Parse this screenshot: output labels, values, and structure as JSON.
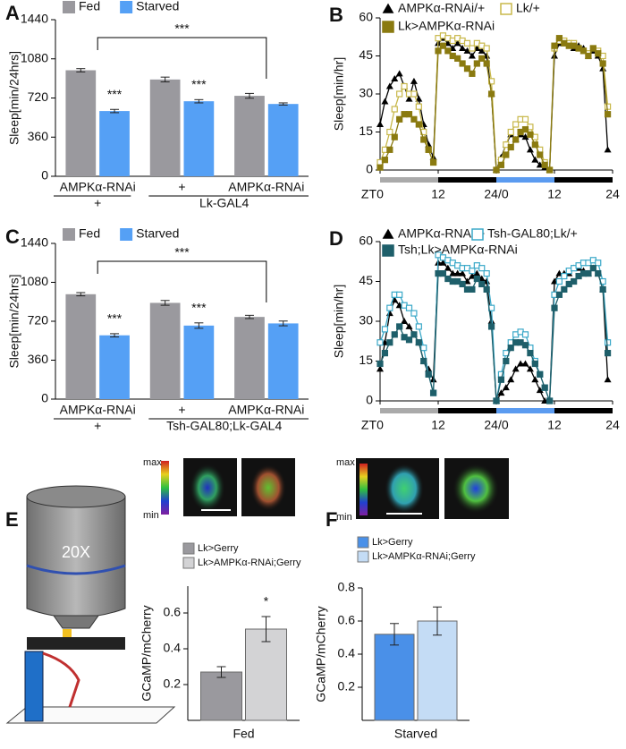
{
  "panel_labels": [
    "A",
    "B",
    "C",
    "D",
    "E",
    "F"
  ],
  "microscope_label": "20X",
  "insets": [
    {
      "max": "max",
      "min": "min"
    },
    {
      "max": "max",
      "min": "min"
    }
  ],
  "chart_data": [
    {
      "type": "bar",
      "ylabel": "Sleep[min/24hrs]",
      "categories": [
        "AMPKα-RNAi",
        "+",
        "AMPKα-RNAi"
      ],
      "genotype": [
        "+",
        "Lk-GAL4"
      ],
      "ylim": [
        0,
        1440
      ],
      "yticks": [
        0,
        360,
        720,
        1080,
        1440
      ],
      "annotations": [
        "***",
        "***",
        "***"
      ],
      "series": [
        {
          "name": "Fed",
          "color": "#9a999e",
          "values": [
            975,
            890,
            740
          ],
          "errors": [
            15,
            22,
            22
          ]
        },
        {
          "name": "Starved",
          "color": "#55a0f5",
          "values": [
            600,
            690,
            665
          ],
          "errors": [
            15,
            15,
            10
          ]
        }
      ]
    },
    {
      "type": "line",
      "ylabel": "Sleep[min/hr]",
      "xlabel": "ZT",
      "xlim": [
        0,
        48
      ],
      "ylim": [
        0,
        60
      ],
      "yticks": [
        0,
        15,
        30,
        45,
        60
      ],
      "xticks": [
        0,
        12,
        {
          "value": 24,
          "label": "24/0"
        },
        {
          "value": 36,
          "label": "12"
        },
        {
          "value": 48,
          "label": "24"
        }
      ],
      "x": [
        0,
        1,
        2,
        3,
        4,
        5,
        6,
        7,
        8,
        9,
        10,
        11,
        12,
        13,
        14,
        15,
        16,
        17,
        18,
        19,
        20,
        21,
        22,
        23,
        24,
        25,
        26,
        27,
        28,
        29,
        30,
        31,
        32,
        33,
        34,
        35,
        36,
        37,
        38,
        39,
        40,
        41,
        42,
        43,
        44,
        45,
        46,
        47
      ],
      "series": [
        {
          "name": "AMPKα-RNAi/+",
          "color": "#000000",
          "marker": "triangle",
          "values": [
            18,
            27,
            33,
            36,
            38,
            33,
            28,
            35,
            28,
            18,
            10,
            5,
            50,
            52,
            50,
            48,
            50,
            48,
            47,
            45,
            48,
            47,
            45,
            30,
            0,
            5,
            10,
            14,
            12,
            14,
            13,
            8,
            4,
            2,
            1,
            0,
            45,
            50,
            50,
            50,
            48,
            49,
            48,
            45,
            47,
            45,
            40,
            8
          ]
        },
        {
          "name": "Lk/+",
          "color": "#c8b84a",
          "marker": "square-open",
          "values": [
            3,
            8,
            15,
            24,
            30,
            33,
            30,
            30,
            25,
            15,
            8,
            3,
            52,
            53,
            52,
            51,
            52,
            51,
            50,
            48,
            50,
            49,
            48,
            35,
            0,
            4,
            10,
            15,
            18,
            20,
            20,
            17,
            13,
            8,
            3,
            0,
            48,
            51,
            51,
            50,
            50,
            48,
            47,
            46,
            48,
            47,
            45,
            25
          ]
        },
        {
          "name": "Lk>AMPKα-RNAi",
          "color": "#8a7a10",
          "marker": "square",
          "values": [
            1,
            4,
            8,
            13,
            20,
            22,
            22,
            20,
            18,
            12,
            8,
            3,
            47,
            49,
            47,
            45,
            44,
            42,
            40,
            38,
            42,
            44,
            42,
            30,
            0,
            2,
            6,
            9,
            12,
            15,
            16,
            14,
            10,
            6,
            2,
            0,
            49,
            52,
            50,
            49,
            49,
            48,
            47,
            45,
            48,
            46,
            42,
            22
          ]
        }
      ]
    },
    {
      "type": "bar",
      "ylabel": "Sleep[min/24hrs]",
      "categories": [
        "AMPKα-RNAi",
        "+",
        "AMPKα-RNAi"
      ],
      "genotype": [
        "+",
        "Tsh-GAL80;Lk-GAL4"
      ],
      "ylim": [
        0,
        1440
      ],
      "yticks": [
        0,
        360,
        720,
        1080,
        1440
      ],
      "annotations": [
        "***",
        "***",
        "***"
      ],
      "series": [
        {
          "name": "Fed",
          "color": "#9a999e",
          "values": [
            970,
            890,
            760
          ],
          "errors": [
            15,
            22,
            15
          ]
        },
        {
          "name": "Starved",
          "color": "#55a0f5",
          "values": [
            590,
            680,
            700
          ],
          "errors": [
            15,
            25,
            22
          ]
        }
      ]
    },
    {
      "type": "line",
      "ylabel": "Sleep[min/hr]",
      "xlabel": "ZT",
      "xlim": [
        0,
        48
      ],
      "ylim": [
        0,
        60
      ],
      "yticks": [
        0,
        15,
        30,
        45,
        60
      ],
      "xticks": [
        0,
        12,
        {
          "value": 24,
          "label": "24/0"
        },
        {
          "value": 36,
          "label": "12"
        },
        {
          "value": 48,
          "label": "24"
        }
      ],
      "x": [
        0,
        1,
        2,
        3,
        4,
        5,
        6,
        7,
        8,
        9,
        10,
        11,
        12,
        13,
        14,
        15,
        16,
        17,
        18,
        19,
        20,
        21,
        22,
        23,
        24,
        25,
        26,
        27,
        28,
        29,
        30,
        31,
        32,
        33,
        34,
        35,
        36,
        37,
        38,
        39,
        40,
        41,
        42,
        43,
        44,
        45,
        46,
        47
      ],
      "series": [
        {
          "name": "AMPKα-RNAi/+",
          "color": "#000000",
          "marker": "triangle",
          "values": [
            12,
            22,
            33,
            38,
            36,
            30,
            28,
            25,
            22,
            15,
            12,
            8,
            52,
            52,
            50,
            48,
            48,
            48,
            45,
            47,
            48,
            46,
            45,
            30,
            0,
            3,
            5,
            8,
            12,
            14,
            14,
            12,
            8,
            4,
            0,
            0,
            45,
            48,
            48,
            48,
            50,
            50,
            49,
            48,
            50,
            48,
            42,
            8
          ]
        },
        {
          "name": "Tsh-GAL80;Lk/+",
          "color": "#3aa8c8",
          "marker": "square-open",
          "values": [
            22,
            27,
            35,
            40,
            40,
            36,
            35,
            33,
            28,
            20,
            10,
            3,
            55,
            54,
            53,
            52,
            51,
            50,
            50,
            49,
            51,
            50,
            48,
            35,
            0,
            10,
            18,
            22,
            25,
            26,
            25,
            20,
            15,
            10,
            5,
            0,
            40,
            45,
            47,
            49,
            50,
            51,
            52,
            52,
            53,
            52,
            45,
            22
          ]
        },
        {
          "name": "Tsh;Lk>AMPKα-RNAi",
          "color": "#1e5f6a",
          "marker": "square",
          "values": [
            14,
            18,
            22,
            25,
            28,
            24,
            23,
            25,
            22,
            15,
            10,
            3,
            48,
            48,
            46,
            45,
            45,
            44,
            42,
            42,
            46,
            44,
            42,
            28,
            0,
            8,
            15,
            20,
            22,
            22,
            21,
            18,
            14,
            10,
            5,
            0,
            35,
            40,
            42,
            44,
            45,
            47,
            48,
            48,
            50,
            48,
            42,
            18
          ]
        }
      ]
    },
    {
      "type": "bar",
      "ylabel": "GCaMP/mCherry",
      "xlabel": "Fed",
      "categories": [
        null
      ],
      "ylim": [
        0,
        0.75
      ],
      "yticks": [
        0.2,
        0.4,
        0.6
      ],
      "annotations": [
        "*"
      ],
      "series": [
        {
          "name": "Lk>Gerry",
          "color": "#9a999e",
          "values": [
            0.27
          ],
          "errors": [
            0.03
          ]
        },
        {
          "name": "Lk>AMPKα-RNAi;Gerry",
          "color": "#d3d3d5",
          "values": [
            0.51
          ],
          "errors": [
            0.07
          ]
        }
      ]
    },
    {
      "type": "bar",
      "ylabel": "GCaMP/mCherry",
      "xlabel": "Starved",
      "categories": [
        null
      ],
      "ylim": [
        0,
        0.8
      ],
      "yticks": [
        0.2,
        0.4,
        0.6,
        0.8
      ],
      "annotations": [],
      "series": [
        {
          "name": "Lk>Gerry",
          "color": "#4a90e8",
          "values": [
            0.52
          ],
          "errors": [
            0.065
          ]
        },
        {
          "name": "Lk>AMPKα-RNAi;Gerry",
          "color": "#c4dcf5",
          "values": [
            0.6
          ],
          "errors": [
            0.085
          ]
        }
      ]
    }
  ]
}
